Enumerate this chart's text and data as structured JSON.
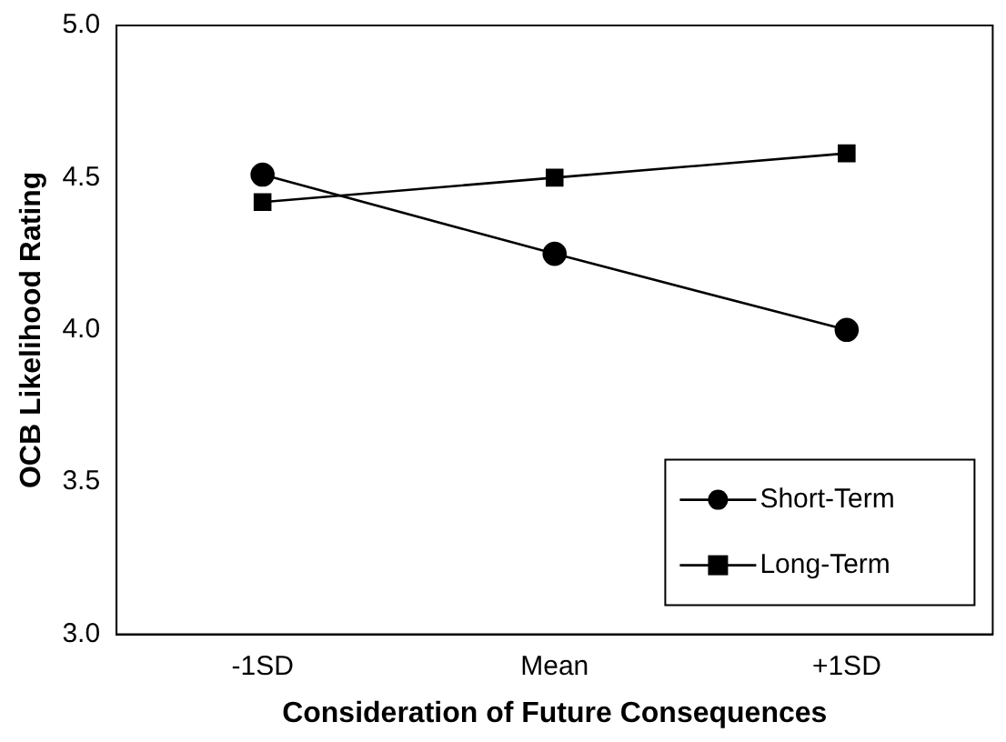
{
  "chart_data": {
    "type": "line",
    "xlabel": "Consideration of Future Consequences",
    "ylabel": "OCB Likelihood Rating",
    "categories": [
      "-1SD",
      "Mean",
      "+1SD"
    ],
    "series": [
      {
        "name": "Short-Term",
        "color": "#000000",
        "marker": "circle",
        "values": [
          4.51,
          4.25,
          4.0
        ]
      },
      {
        "name": "Long-Term",
        "color": "#000000",
        "marker": "square",
        "values": [
          4.42,
          4.5,
          4.58
        ]
      }
    ],
    "ylim": [
      3,
      5
    ],
    "yticks": [
      {
        "value": 3,
        "label": "3.0"
      },
      {
        "value": 3.5,
        "label": "3.5"
      },
      {
        "value": 4,
        "label": "4.0"
      },
      {
        "value": 4.5,
        "label": "4.5"
      },
      {
        "value": 5,
        "label": "5.0"
      }
    ],
    "grid": false,
    "legend": "bottom right",
    "line_style": "solid"
  }
}
